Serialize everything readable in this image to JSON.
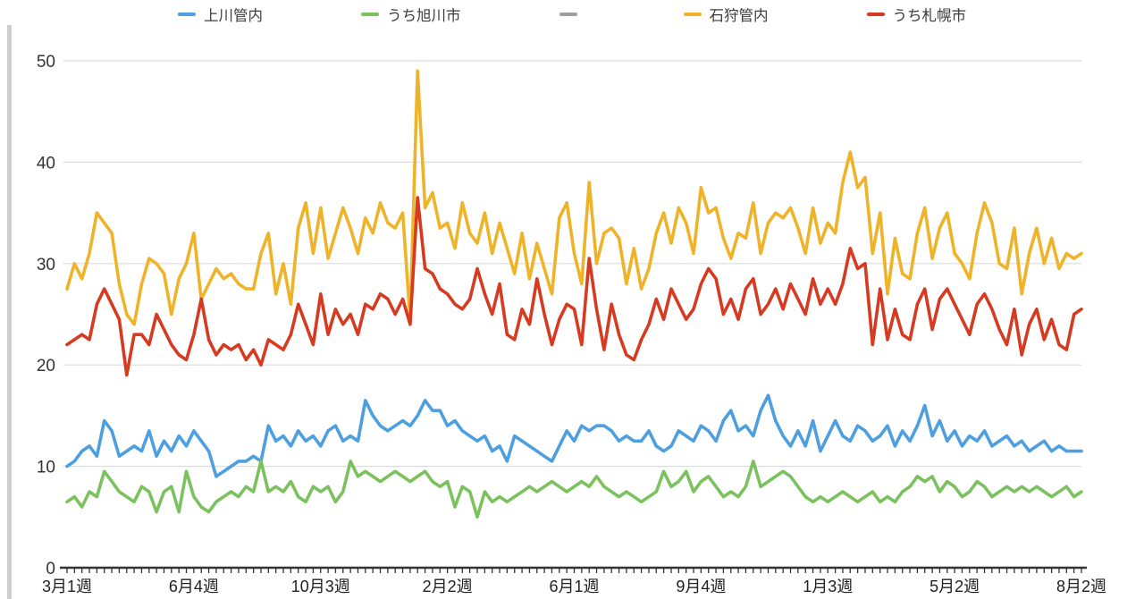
{
  "chart_data": {
    "type": "line",
    "title": "",
    "xlabel": "",
    "ylabel": "",
    "ylim": [
      0,
      50
    ],
    "y_ticks": [
      0,
      10,
      20,
      30,
      40,
      50
    ],
    "n_points": 137,
    "x_tick_indices": [
      0,
      17,
      34,
      51,
      68,
      85,
      102,
      119,
      136
    ],
    "x_tick_labels": [
      "3月1週",
      "6月4週",
      "10月3週",
      "2月2週",
      "6月1週",
      "9月4週",
      "1月3週",
      "5月2週",
      "8月2週"
    ],
    "grid": "horizontal",
    "legend_position": "top",
    "axis_color": "#333333",
    "grid_color": "#dcdcdc",
    "series": [
      {
        "name": "上川管内",
        "color": "#4d9fdf",
        "values": [
          10,
          10.5,
          11.5,
          12,
          11,
          14.5,
          13.5,
          11,
          11.5,
          12,
          11.5,
          13.5,
          11,
          12.5,
          11.5,
          13,
          12,
          13.5,
          12.5,
          11.5,
          9,
          9.5,
          10,
          10.5,
          10.5,
          11,
          10.5,
          14,
          12.5,
          13,
          12,
          13.5,
          12.5,
          13,
          12,
          13.5,
          14,
          12.5,
          13,
          12.5,
          16.5,
          15,
          14,
          13.5,
          14,
          14.5,
          14,
          15,
          16.5,
          15.5,
          15.5,
          14,
          14.5,
          13.5,
          13,
          12.5,
          13,
          11.5,
          12,
          10.5,
          13,
          12.5,
          12,
          11.5,
          11,
          10.5,
          12,
          13.5,
          12.5,
          14,
          13.5,
          14,
          14,
          13.5,
          12.5,
          13,
          12.5,
          12.5,
          13.5,
          12,
          11.5,
          12,
          13.5,
          13,
          12.5,
          14,
          13.5,
          12.5,
          14.5,
          15.5,
          13.5,
          14,
          13,
          15.5,
          17,
          14.5,
          13,
          12,
          13.5,
          12,
          14.5,
          11.5,
          13,
          14.5,
          13,
          12.5,
          14,
          13.5,
          12.5,
          13,
          14,
          12,
          13.5,
          12.5,
          14,
          16,
          13,
          14.5,
          12.5,
          13.5,
          12,
          13,
          12.5,
          13.5,
          12,
          12.5,
          13,
          12,
          12.5,
          11.5,
          12,
          12.5,
          11.5,
          12,
          11.5,
          11.5,
          11.5
        ]
      },
      {
        "name": "うち旭川市",
        "color": "#7bc15e",
        "values": [
          6.5,
          7,
          6,
          7.5,
          7,
          9.5,
          8.5,
          7.5,
          7,
          6.5,
          8,
          7.5,
          5.5,
          7.5,
          8,
          5.5,
          9.5,
          7,
          6,
          5.5,
          6.5,
          7,
          7.5,
          7,
          8,
          7.5,
          10.5,
          7.5,
          8,
          7.5,
          8.5,
          7,
          6.5,
          8,
          7.5,
          8,
          6.5,
          7.5,
          10.5,
          9,
          9.5,
          9,
          8.5,
          9,
          9.5,
          9,
          8.5,
          9,
          9.5,
          8.5,
          8,
          8.5,
          6,
          8,
          7.5,
          5,
          7.5,
          6.5,
          7,
          6.5,
          7,
          7.5,
          8,
          7.5,
          8,
          8.5,
          8,
          7.5,
          8,
          8.5,
          8,
          9,
          8,
          7.5,
          7,
          7.5,
          7,
          6.5,
          7,
          7.5,
          9.5,
          8,
          8.5,
          9.5,
          7.5,
          8.5,
          9,
          8,
          7,
          7.5,
          7,
          8,
          10.5,
          8,
          8.5,
          9,
          9.5,
          9,
          8,
          7,
          6.5,
          7,
          6.5,
          7,
          7.5,
          7,
          6.5,
          7,
          7.5,
          6.5,
          7,
          6.5,
          7.5,
          8,
          9,
          8.5,
          9,
          7.5,
          8.5,
          8,
          7,
          7.5,
          8.5,
          8,
          7,
          7.5,
          8,
          7.5,
          8,
          7.5,
          8,
          7.5,
          7,
          7.5,
          8,
          7,
          7.5
        ]
      },
      {
        "name": "",
        "color": "#9e9e9e",
        "values": []
      },
      {
        "name": "石狩管内",
        "color": "#efb32a",
        "values": [
          27.5,
          30,
          28.5,
          31,
          35,
          34,
          33,
          28,
          25,
          24,
          28,
          30.5,
          30,
          29,
          25,
          28.5,
          30,
          33,
          26.5,
          28,
          29.5,
          28.5,
          29,
          28,
          27.5,
          27.5,
          31,
          33,
          27,
          30,
          26,
          33.5,
          36,
          31,
          35.5,
          30.5,
          33,
          35.5,
          33.5,
          31,
          34.5,
          33,
          36,
          34,
          33.5,
          35,
          24.5,
          49,
          35.5,
          37,
          33.5,
          34,
          31.5,
          36,
          33,
          32,
          35,
          31,
          34,
          31.5,
          29,
          33,
          28.5,
          32,
          29.5,
          27,
          34.5,
          36,
          31,
          28,
          38,
          30,
          33,
          33.5,
          32.5,
          28,
          31.5,
          27.5,
          29.5,
          33,
          35,
          32,
          35.5,
          34,
          31,
          37.5,
          35,
          35.5,
          32.5,
          30.5,
          33,
          32.5,
          36,
          31,
          34,
          35,
          34.5,
          35.5,
          33.5,
          31,
          35.5,
          32,
          34,
          33,
          38,
          41,
          37.5,
          38.5,
          31,
          35,
          27,
          32.5,
          29,
          28.5,
          33,
          35.5,
          30.5,
          33.5,
          35,
          31,
          30,
          28.5,
          33,
          36,
          34,
          30,
          29.5,
          33.5,
          27,
          31,
          33.5,
          30,
          32.5,
          29.5,
          31,
          30.5,
          31
        ]
      },
      {
        "name": "うち札幌市",
        "color": "#d63b21",
        "values": [
          22,
          22.5,
          23,
          22.5,
          26,
          27.5,
          26,
          24.5,
          19,
          23,
          23,
          22,
          25,
          23.5,
          22,
          21,
          20.5,
          23,
          26.5,
          22.5,
          21,
          22,
          21.5,
          22,
          20.5,
          21.5,
          20,
          22.5,
          22,
          21.5,
          23,
          26,
          24,
          22,
          27,
          23,
          25.5,
          24,
          25,
          23,
          26,
          25.5,
          27,
          26.5,
          25,
          26.5,
          24,
          36.5,
          29.5,
          29,
          27.5,
          27,
          26,
          25.5,
          26.5,
          29.5,
          27,
          25,
          28,
          23,
          22.5,
          25.5,
          24,
          28.5,
          25,
          22,
          24.5,
          26,
          25.5,
          22,
          30.5,
          25.5,
          21.5,
          26,
          23,
          21,
          20.5,
          22.5,
          24,
          26.5,
          24.5,
          27.5,
          26,
          24.5,
          25.5,
          28,
          29.5,
          28.5,
          25,
          26.5,
          24.5,
          27.5,
          28.5,
          25,
          26,
          27.5,
          25.5,
          28,
          26.5,
          25,
          28.5,
          26,
          27.5,
          26,
          28,
          31.5,
          29.5,
          30,
          22,
          27.5,
          22.5,
          25.5,
          23,
          22.5,
          26,
          27.5,
          23.5,
          26.5,
          27.5,
          26,
          24.5,
          23,
          26,
          27,
          25.5,
          23.5,
          22,
          25.5,
          21,
          24,
          25.5,
          22.5,
          24.5,
          22,
          21.5,
          25,
          25.5
        ]
      }
    ]
  }
}
